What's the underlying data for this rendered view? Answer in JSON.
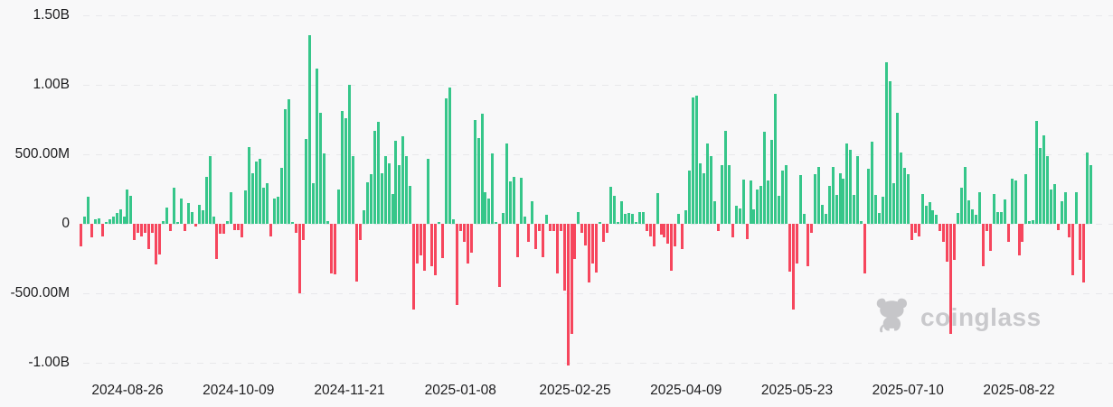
{
  "watermark": {
    "label": "coinglass",
    "icon": "coinglass-bull-icon"
  },
  "chart_data": {
    "type": "bar",
    "title": "",
    "xlabel": "",
    "ylabel": "",
    "value_unit": "USD (millions, read from axis: B = billions)",
    "grid": "dashed horizontal gridlines",
    "legend_position": "none",
    "ylim_millions": [
      -1083,
      1500
    ],
    "colors": {
      "positive": "#36c68a",
      "negative": "#f6465d"
    },
    "y_ticks": [
      {
        "value": 1500,
        "label": "1.50B"
      },
      {
        "value": 1000,
        "label": "1.00B"
      },
      {
        "value": 500,
        "label": "500.00M"
      },
      {
        "value": 0,
        "label": "0"
      },
      {
        "value": -500,
        "label": "-500.00M"
      },
      {
        "value": -1000,
        "label": "-1.00B"
      }
    ],
    "x_ticks": [
      {
        "index": 13,
        "label": "2024-08-26"
      },
      {
        "index": 44,
        "label": "2024-10-09"
      },
      {
        "index": 75,
        "label": "2024-11-21"
      },
      {
        "index": 106,
        "label": "2025-01-08"
      },
      {
        "index": 138,
        "label": "2025-02-25"
      },
      {
        "index": 169,
        "label": "2025-04-09"
      },
      {
        "index": 200,
        "label": "2025-05-23"
      },
      {
        "index": 231,
        "label": "2025-07-10"
      },
      {
        "index": 262,
        "label": "2025-08-22"
      }
    ],
    "values": [
      -165,
      55,
      195,
      -100,
      30,
      40,
      -90,
      10,
      30,
      55,
      80,
      105,
      55,
      250,
      200,
      -120,
      -65,
      -90,
      -65,
      -185,
      -65,
      -295,
      -220,
      20,
      115,
      -55,
      260,
      15,
      185,
      -55,
      150,
      85,
      -20,
      135,
      100,
      335,
      490,
      55,
      -250,
      -70,
      -70,
      20,
      230,
      -45,
      -45,
      -100,
      240,
      550,
      365,
      450,
      470,
      260,
      290,
      -90,
      185,
      195,
      400,
      825,
      895,
      15,
      -65,
      -500,
      -120,
      610,
      1355,
      290,
      1120,
      800,
      505,
      20,
      -360,
      -365,
      245,
      810,
      760,
      1000,
      485,
      -415,
      -120,
      95,
      300,
      355,
      670,
      735,
      365,
      490,
      435,
      215,
      600,
      420,
      630,
      485,
      270,
      -620,
      -285,
      -230,
      -335,
      470,
      -305,
      -370,
      10,
      -245,
      905,
      980,
      30,
      -585,
      -55,
      -130,
      -285,
      -205,
      745,
      620,
      790,
      225,
      180,
      505,
      15,
      -455,
      75,
      580,
      305,
      335,
      -240,
      330,
      55,
      -130,
      160,
      -185,
      -55,
      -240,
      65,
      -55,
      -55,
      -360,
      -55,
      -480,
      -1020,
      -790,
      -250,
      85,
      -65,
      -155,
      -420,
      -285,
      -350,
      15,
      -130,
      -65,
      265,
      200,
      10,
      165,
      70,
      75,
      70,
      15,
      85,
      85,
      -55,
      -90,
      -165,
      220,
      -80,
      -100,
      -145,
      -340,
      -165,
      70,
      -180,
      95,
      380,
      910,
      920,
      435,
      365,
      575,
      485,
      160,
      -55,
      420,
      670,
      420,
      -100,
      130,
      110,
      315,
      -110,
      310,
      105,
      250,
      270,
      660,
      310,
      605,
      935,
      200,
      385,
      425,
      -345,
      -620,
      -285,
      350,
      70,
      -305,
      -65,
      360,
      410,
      135,
      70,
      270,
      410,
      205,
      365,
      325,
      575,
      530,
      205,
      485,
      20,
      -360,
      395,
      590,
      205,
      75,
      195,
      1165,
      1025,
      295,
      800,
      510,
      400,
      355,
      -120,
      -65,
      -90,
      215,
      130,
      155,
      100,
      65,
      -55,
      -130,
      -270,
      -790,
      -260,
      75,
      260,
      410,
      170,
      105,
      65,
      225,
      -305,
      -55,
      -195,
      215,
      85,
      85,
      175,
      -130,
      325,
      310,
      -230,
      -130,
      355,
      20,
      25,
      740,
      545,
      635,
      485,
      245,
      285,
      -45,
      160,
      225,
      -100,
      -370,
      230,
      -260,
      -425,
      510,
      425
    ]
  }
}
